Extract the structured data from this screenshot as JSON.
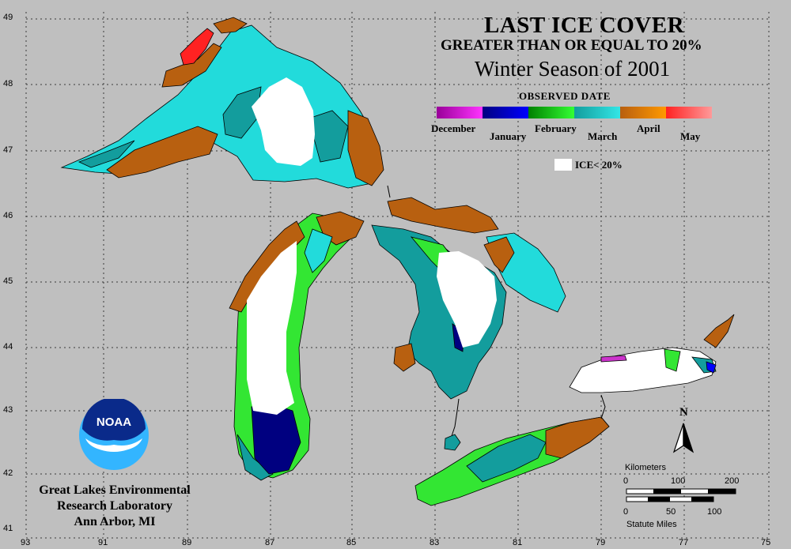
{
  "title": "LAST ICE COVER",
  "subtitle": "GREATER THAN OR EQUAL TO 20%",
  "season": "Winter Season of 2001",
  "legend": {
    "header": "OBSERVED DATE",
    "months": [
      {
        "label": "December",
        "colors": [
          "#990099",
          "#ff33ff"
        ]
      },
      {
        "label": "January",
        "colors": [
          "#000080",
          "#0000ff"
        ]
      },
      {
        "label": "February",
        "colors": [
          "#008000",
          "#33ff33"
        ]
      },
      {
        "label": "March",
        "colors": [
          "#139d9d",
          "#33e6e6"
        ]
      },
      {
        "label": "April",
        "colors": [
          "#b85f10",
          "#ff9900"
        ]
      },
      {
        "label": "May",
        "colors": [
          "#ff2222",
          "#ff9999"
        ]
      }
    ],
    "ice_below_label": "ICE< 20%",
    "ice_below_color": "#ffffff"
  },
  "latitudes": [
    "49",
    "48",
    "47",
    "46",
    "45",
    "44",
    "43",
    "42",
    "41"
  ],
  "longitudes": [
    "93",
    "91",
    "89",
    "87",
    "85",
    "83",
    "81",
    "79",
    "77",
    "75"
  ],
  "organization": {
    "line1": "Great Lakes Environmental",
    "line2": "Research Laboratory",
    "line3": "Ann Arbor, MI",
    "logo_text": "NOAA"
  },
  "north_label": "N",
  "scale": {
    "km_label": "Kilometers",
    "km_ticks": [
      "0",
      "100",
      "200"
    ],
    "mi_ticks": [
      "0",
      "50",
      "100"
    ],
    "mi_label": "Statute Miles"
  },
  "colors": {
    "background": "#bfbfbf",
    "grid": "#333333",
    "shore": "#000000"
  }
}
